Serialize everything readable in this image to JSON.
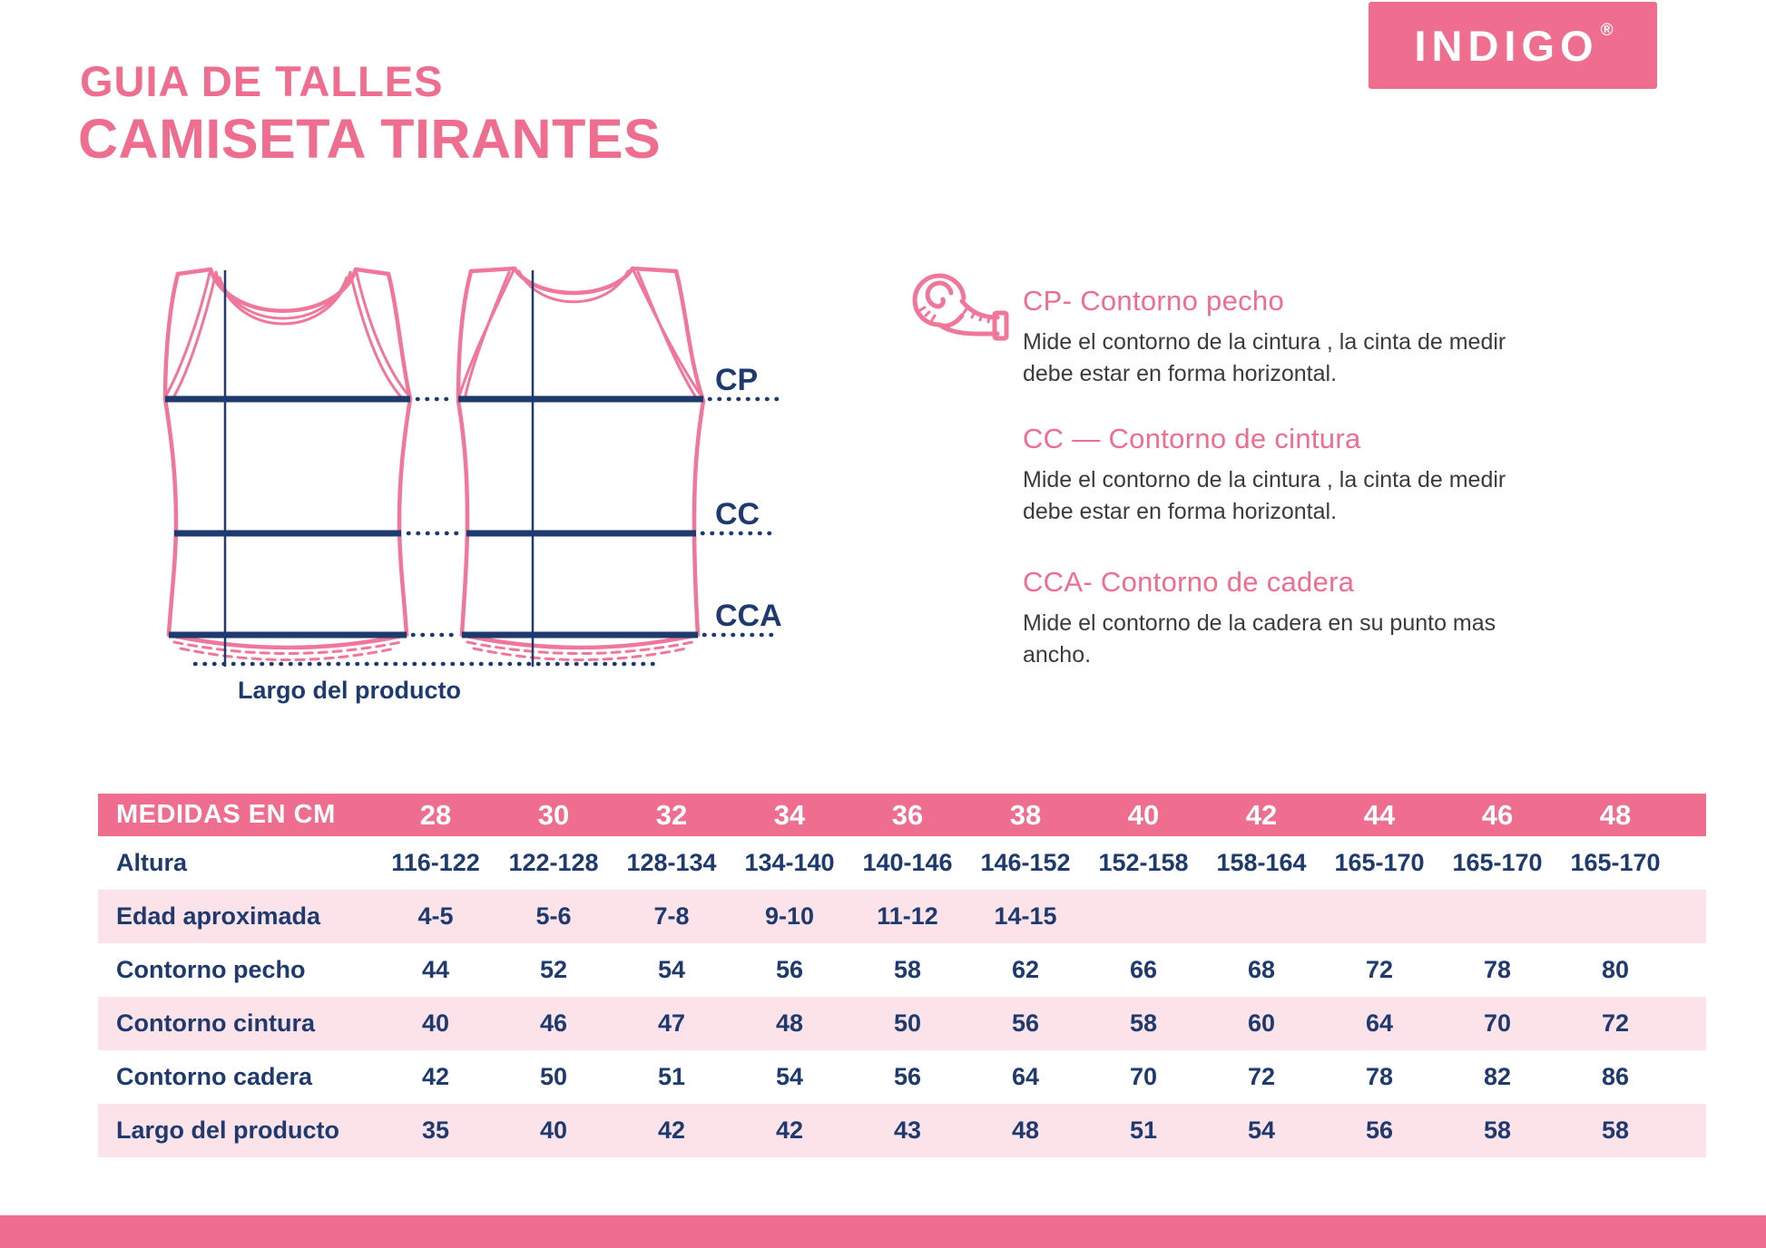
{
  "brand": {
    "logo_text": "INDIGO",
    "registered_mark": "®"
  },
  "header": {
    "title_line1": "GUIA DE TALLES",
    "title_line2": "CAMISETA TIRANTES"
  },
  "diagram": {
    "cp_label": "CP",
    "cc_label": "CC",
    "cca_label": "CCA",
    "length_label": "Largo del producto"
  },
  "measure_guide": [
    {
      "heading": "CP- Contorno pecho",
      "body": "Mide el contorno de la cintura , la cinta de medir debe estar en forma horizontal."
    },
    {
      "heading": "CC — Contorno de cintura",
      "body": "Mide el contorno de la cintura , la cinta de medir debe estar en forma horizontal."
    },
    {
      "heading": "CCA- Contorno de cadera",
      "body": "Mide el contorno de la cadera en su punto mas ancho."
    }
  ],
  "size_table": {
    "header_label": "MEDIDAS EN CM",
    "sizes": [
      "28",
      "30",
      "32",
      "34",
      "36",
      "38",
      "40",
      "42",
      "44",
      "46",
      "48"
    ],
    "rows": [
      {
        "label": "Altura",
        "values": [
          "116-122",
          "122-128",
          "128-134",
          "134-140",
          "140-146",
          "146-152",
          "152-158",
          "158-164",
          "165-170",
          "165-170",
          "165-170"
        ]
      },
      {
        "label": "Edad aproximada",
        "values": [
          "4-5",
          "5-6",
          "7-8",
          "9-10",
          "11-12",
          "14-15",
          "",
          "",
          "",
          "",
          ""
        ]
      },
      {
        "label": "Contorno pecho",
        "values": [
          "44",
          "52",
          "54",
          "56",
          "58",
          "62",
          "66",
          "68",
          "72",
          "78",
          "80"
        ]
      },
      {
        "label": "Contorno cintura",
        "values": [
          "40",
          "46",
          "47",
          "48",
          "50",
          "56",
          "58",
          "60",
          "64",
          "70",
          "72"
        ]
      },
      {
        "label": "Contorno cadera",
        "values": [
          "42",
          "50",
          "51",
          "54",
          "56",
          "64",
          "70",
          "72",
          "78",
          "82",
          "86"
        ]
      },
      {
        "label": "Largo del producto",
        "values": [
          "35",
          "40",
          "42",
          "42",
          "43",
          "48",
          "51",
          "54",
          "56",
          "58",
          "58"
        ]
      }
    ]
  },
  "colors": {
    "brand_pink": "#ef6d8f",
    "row_tint": "#fbe3e9",
    "navy": "#1f3a6e",
    "text_dark": "#3b3b3b",
    "shirt_pink": "#f0769a"
  }
}
